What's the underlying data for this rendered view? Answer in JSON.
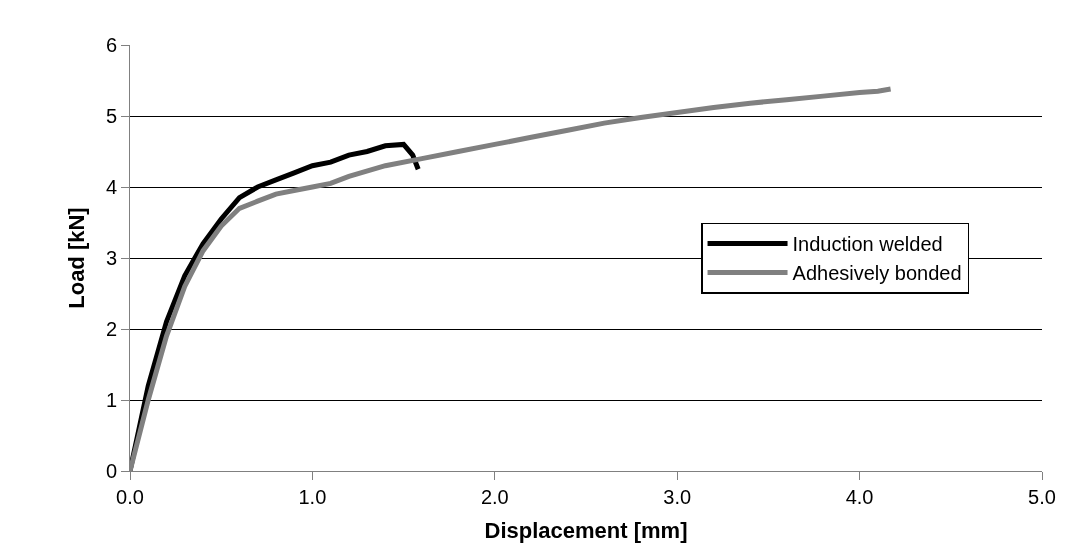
{
  "chart_data": {
    "type": "line",
    "xlabel": "Displacement [mm]",
    "ylabel": "Load [kN]",
    "xlim": [
      0,
      5
    ],
    "xticks": [
      {
        "value": 0,
        "label": "0.0"
      },
      {
        "value": 1,
        "label": "1.0"
      },
      {
        "value": 2,
        "label": "2.0"
      },
      {
        "value": 3,
        "label": "3.0"
      },
      {
        "value": 4,
        "label": "4.0"
      },
      {
        "value": 5,
        "label": "5.0"
      }
    ],
    "ylim": [
      0,
      6
    ],
    "yticks": [
      0,
      1,
      2,
      3,
      4,
      5,
      6
    ],
    "grid": "y",
    "legend": "right",
    "line_style": "solid",
    "marker": "none",
    "series": [
      {
        "name": "Induction welded",
        "color": "#000000",
        "x": [
          0,
          0.1,
          0.2,
          0.3,
          0.4,
          0.5,
          0.6,
          0.7,
          0.8,
          0.9,
          1.0,
          1.1,
          1.2,
          1.3,
          1.4,
          1.5,
          1.55,
          1.58
        ],
        "values": [
          0,
          1.2,
          2.1,
          2.75,
          3.2,
          3.55,
          3.85,
          4.0,
          4.1,
          4.2,
          4.3,
          4.35,
          4.45,
          4.5,
          4.58,
          4.6,
          4.45,
          4.25
        ]
      },
      {
        "name": "Adhesively bonded",
        "color": "#808080",
        "x": [
          0,
          0.1,
          0.2,
          0.3,
          0.4,
          0.5,
          0.6,
          0.7,
          0.8,
          0.9,
          1.0,
          1.1,
          1.2,
          1.4,
          1.6,
          1.8,
          2.0,
          2.2,
          2.4,
          2.6,
          2.8,
          3.0,
          3.2,
          3.4,
          3.6,
          3.8,
          4.0,
          4.1,
          4.17
        ],
        "values": [
          0,
          1.0,
          1.9,
          2.6,
          3.1,
          3.45,
          3.7,
          3.8,
          3.9,
          3.95,
          4.0,
          4.05,
          4.15,
          4.3,
          4.4,
          4.5,
          4.6,
          4.7,
          4.8,
          4.9,
          4.98,
          5.05,
          5.12,
          5.18,
          5.23,
          5.28,
          5.33,
          5.35,
          5.38
        ]
      }
    ]
  }
}
